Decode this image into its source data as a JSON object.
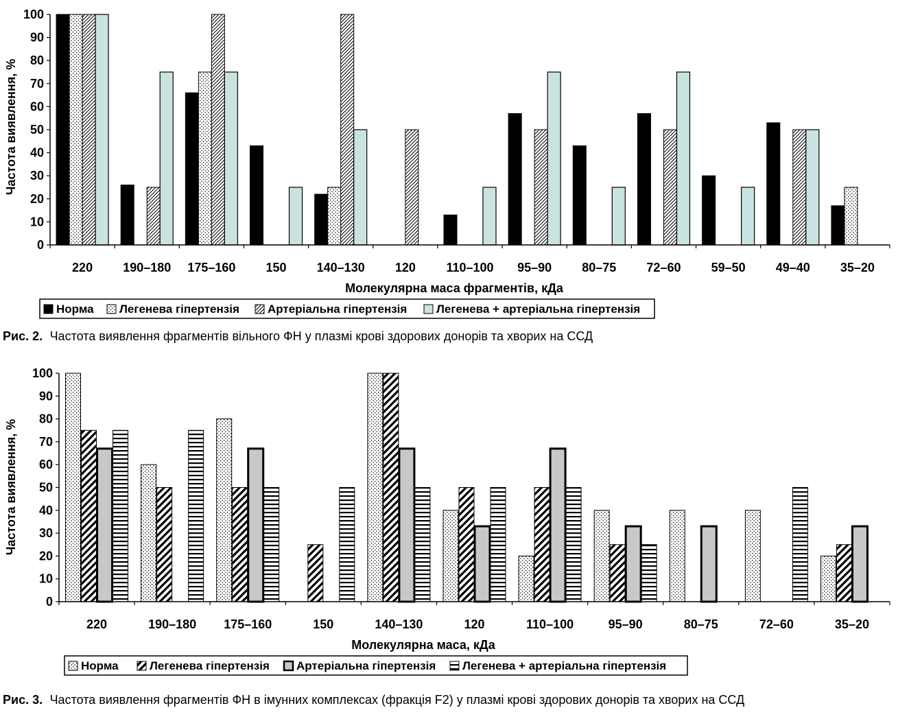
{
  "chart_data": [
    {
      "type": "bar",
      "title": "",
      "xlabel": "Молекулярна маса фрагментів, кДа",
      "ylabel": "Частота виявлення, %",
      "ylim": [
        0,
        100
      ],
      "yticks": [
        "0",
        "10",
        "20",
        "30",
        "40",
        "50",
        "60",
        "70",
        "80",
        "90",
        "100"
      ],
      "grid": false,
      "legend_position": "bottom",
      "categories": [
        "220",
        "190–180",
        "175–160",
        "150",
        "140–130",
        "120",
        "110–100",
        "95–90",
        "80–75",
        "72–60",
        "59–50",
        "49–40",
        "35–20"
      ],
      "series": [
        {
          "name": "Норма",
          "pattern": "solid",
          "values": [
            100,
            26,
            66,
            43,
            22,
            0,
            13,
            57,
            43,
            57,
            30,
            53,
            17
          ]
        },
        {
          "name": "Легенева гіпертензія",
          "pattern": "dots",
          "values": [
            100,
            0,
            75,
            0,
            25,
            0,
            0,
            0,
            0,
            0,
            0,
            0,
            25
          ]
        },
        {
          "name": "Артеріальна гіпертензія",
          "pattern": "hatch",
          "values": [
            100,
            25,
            100,
            0,
            100,
            50,
            0,
            50,
            0,
            50,
            0,
            50,
            0
          ]
        },
        {
          "name": "Легенева + артеріальна гіпертензія",
          "pattern": "lightblue",
          "values": [
            100,
            75,
            75,
            25,
            50,
            0,
            25,
            75,
            25,
            75,
            25,
            50,
            0
          ]
        }
      ],
      "caption_label": "Рис. 2.",
      "caption_text": "Частота виявлення фрагментів вільного ФН у плазмі крові здорових донорів та хворих на ССД"
    },
    {
      "type": "bar",
      "title": "",
      "xlabel": "Молекулярна маса, кДа",
      "ylabel": "Частота виявлення, %",
      "ylim": [
        0,
        100
      ],
      "yticks": [
        "0",
        "10",
        "20",
        "30",
        "40",
        "50",
        "60",
        "70",
        "80",
        "90",
        "100"
      ],
      "grid": false,
      "legend_position": "bottom",
      "categories": [
        "220",
        "190–180",
        "175–160",
        "150",
        "140–130",
        "120",
        "110–100",
        "95–90",
        "80–75",
        "72–60",
        "35–20"
      ],
      "series": [
        {
          "name": "Норма",
          "pattern": "dots",
          "values": [
            100,
            60,
            80,
            0,
            100,
            40,
            20,
            40,
            40,
            40,
            20
          ]
        },
        {
          "name": "Легенева гіпертензія",
          "pattern": "diag",
          "values": [
            75,
            50,
            50,
            25,
            100,
            50,
            50,
            25,
            0,
            0,
            25
          ]
        },
        {
          "name": "Артеріальна гіпертензія",
          "pattern": "gray",
          "values": [
            67,
            0,
            67,
            0,
            67,
            33,
            67,
            33,
            33,
            0,
            33
          ]
        },
        {
          "name": "Легенева + артеріальна гіпертензія",
          "pattern": "hlines",
          "values": [
            75,
            75,
            50,
            50,
            50,
            50,
            50,
            25,
            0,
            50,
            0
          ]
        }
      ],
      "caption_label": "Рис. 3.",
      "caption_text": "Частота виявлення фрагментів ФН в імунних комплексах (фракція F2) у плазмі крові здорових донорів та хворих на ССД"
    }
  ]
}
